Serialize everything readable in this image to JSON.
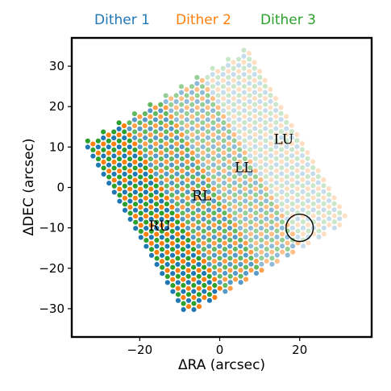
{
  "chart_data": {
    "type": "scatter",
    "title": "",
    "xlabel": "ΔRA (arcsec)",
    "ylabel": "ΔDEC (arcsec)",
    "xlim": [
      -37,
      38
    ],
    "ylim": [
      -37,
      37
    ],
    "x_ticks": [
      -20,
      0,
      20
    ],
    "x_tick_labels": [
      "−20",
      "0",
      "20"
    ],
    "y_ticks": [
      30,
      20,
      10,
      0,
      -10,
      -20,
      -30
    ],
    "y_tick_labels": [
      "30",
      "20",
      "10",
      "0",
      "−10",
      "−20",
      "−30"
    ],
    "grid": false,
    "legend": {
      "placement": "top-center (above plot)",
      "entries": [
        {
          "label": "Dither 1",
          "color": "#1f77b4"
        },
        {
          "label": "Dither 2",
          "color": "#ff7f0e"
        },
        {
          "label": "Dither 3",
          "color": "#2ca02c"
        }
      ]
    },
    "series": [
      {
        "name": "Dither 1",
        "color": "#1f77b4",
        "offset": [
          0,
          0
        ]
      },
      {
        "name": "Dither 2",
        "color": "#ff7f0e",
        "offset": [
          1.3,
          0.75
        ]
      },
      {
        "name": "Dither 3",
        "color": "#2ca02c",
        "offset": [
          0,
          1.5
        ]
      }
    ],
    "fiber_footprint": {
      "description": "Four IFU fiber bundles arranged as a rotated rectangular mosaic",
      "corners": [
        [
          -33,
          10
        ],
        [
          -8,
          -32
        ],
        [
          33,
          -7
        ],
        [
          7,
          33
        ]
      ],
      "fiber_pitch": 2.6,
      "regions": [
        {
          "label": "RU",
          "center": [
            -15,
            -9.5
          ],
          "alpha": 1.0
        },
        {
          "label": "RL",
          "center": [
            -4.5,
            -2
          ],
          "alpha": 0.75
        },
        {
          "label": "LL",
          "center": [
            6,
            5
          ],
          "alpha": 0.5
        },
        {
          "label": "LU",
          "center": [
            16,
            12
          ],
          "alpha": 0.25
        }
      ]
    },
    "annotations": [
      {
        "type": "circle",
        "center": [
          20,
          -10
        ],
        "radius": 3.4,
        "color": "#000000"
      }
    ]
  }
}
